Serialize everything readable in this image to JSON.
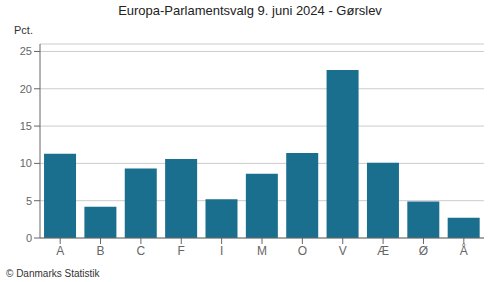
{
  "chart_data": {
    "type": "bar",
    "title": "Europa-Parlamentsvalg 9. juni 2024 - Gørslev",
    "ylabel": "Pct.",
    "annotations": [
      "© Danmarks Statistik"
    ],
    "categories": [
      "A",
      "B",
      "C",
      "F",
      "I",
      "M",
      "O",
      "V",
      "Æ",
      "Ø",
      "Å"
    ],
    "values": [
      11.3,
      4.2,
      9.3,
      10.6,
      5.2,
      8.6,
      11.4,
      22.5,
      10.1,
      4.9,
      2.7
    ],
    "color": "#1a6e8e",
    "ylim": [
      0,
      26
    ],
    "yticks": [
      0,
      5,
      10,
      15,
      20,
      25
    ],
    "grid": true
  }
}
